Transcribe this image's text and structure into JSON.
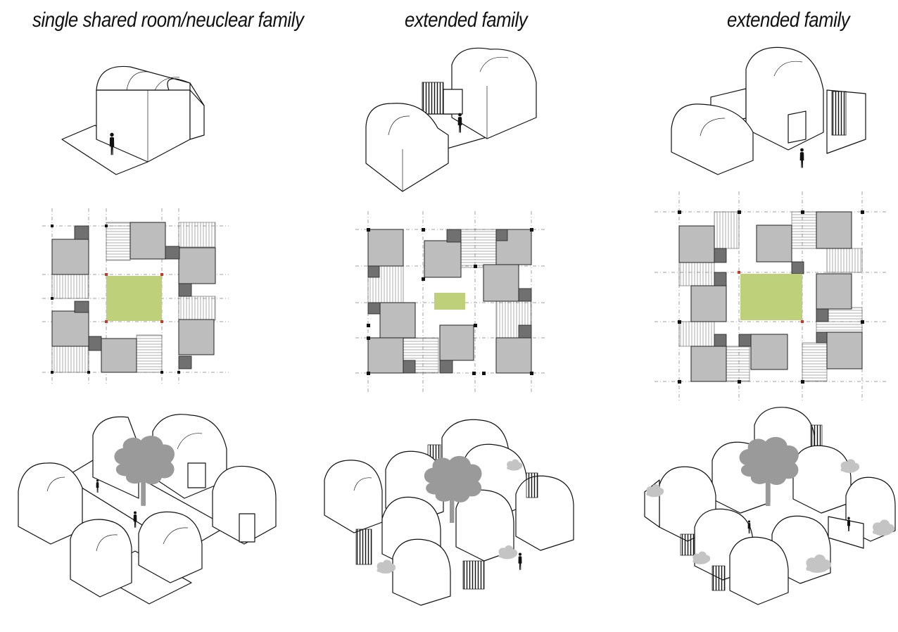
{
  "columns": [
    {
      "title": "single shared room/neuclear family"
    },
    {
      "title": "extended family"
    },
    {
      "title": "extended family"
    }
  ],
  "colors": {
    "courtyard": "#bfd07a",
    "room": "#bdbdbd",
    "service_block": "#707070",
    "line": "#111111",
    "corner_node_highlight": "#c0392b"
  },
  "icons": [
    "person-icon",
    "tree-icon",
    "shrub-icon"
  ]
}
